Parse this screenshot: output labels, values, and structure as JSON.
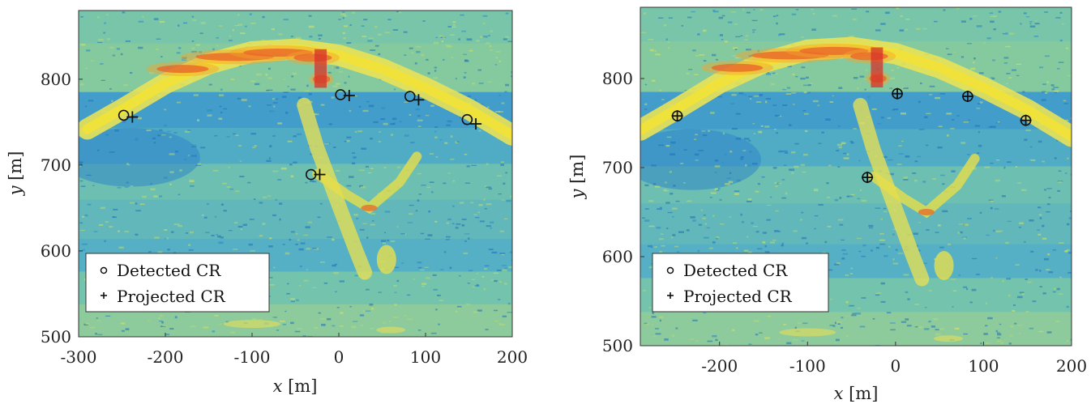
{
  "chart_data": [
    {
      "type": "scatter",
      "panel": "left",
      "xlabel_var": "x",
      "xlabel_unit": "[m]",
      "ylabel_var": "y",
      "ylabel_unit": "[m]",
      "xlim": [
        -300,
        200
      ],
      "ylim": [
        500,
        880
      ],
      "xticks": [
        "-300",
        "-200",
        "-100",
        "0",
        "100",
        "200"
      ],
      "yticks": [
        "500",
        "600",
        "700",
        "800"
      ],
      "background": "SAR intensity image (blue-green background, yellow/red bright returns)",
      "legend": [
        "Detected CR",
        "Projected CR"
      ],
      "legend_position": "bottom-left",
      "series": [
        {
          "name": "Detected CR",
          "marker": "circle",
          "points": [
            [
              -248,
              758
            ],
            [
              2,
              782
            ],
            [
              82,
              780
            ],
            [
              148,
              753
            ],
            [
              -32,
              689
            ]
          ]
        },
        {
          "name": "Projected CR",
          "marker": "plus",
          "points": [
            [
              -238,
              756
            ],
            [
              12,
              781
            ],
            [
              92,
              776
            ],
            [
              158,
              748
            ],
            [
              -22,
              689
            ]
          ]
        }
      ]
    },
    {
      "type": "scatter",
      "panel": "right",
      "xlabel_var": "x",
      "xlabel_unit": "[m]",
      "ylabel_var": "y",
      "ylabel_unit": "[m]",
      "xlim": [
        -290,
        200
      ],
      "ylim": [
        500,
        880
      ],
      "xticks": [
        "-200",
        "-100",
        "0",
        "100",
        "200"
      ],
      "yticks": [
        "500",
        "600",
        "700",
        "800"
      ],
      "background": "SAR intensity image (blue-green background, yellow/red bright returns)",
      "legend": [
        "Detected CR",
        "Projected CR"
      ],
      "legend_position": "bottom-left",
      "series": [
        {
          "name": "Detected CR",
          "marker": "circle",
          "points": [
            [
              -248,
              758
            ],
            [
              2,
              783
            ],
            [
              82,
              780
            ],
            [
              148,
              753
            ],
            [
              -32,
              689
            ]
          ]
        },
        {
          "name": "Projected CR",
          "marker": "plus",
          "points": [
            [
              -248,
              758
            ],
            [
              2,
              783
            ],
            [
              82,
              780
            ],
            [
              148,
              753
            ],
            [
              -32,
              689
            ]
          ]
        }
      ]
    }
  ]
}
